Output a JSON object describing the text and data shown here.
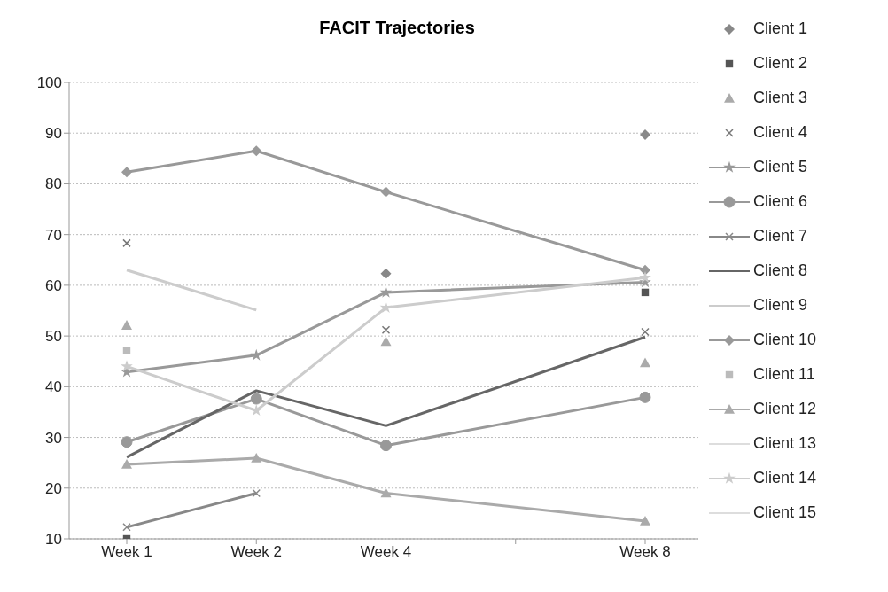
{
  "chart_data": {
    "type": "line",
    "title": "FACIT Trajectories",
    "categories": [
      "Week 1",
      "Week 2",
      "Week 4",
      null,
      "Week 8"
    ],
    "ylim": [
      10,
      100
    ],
    "yticks": [
      10,
      20,
      30,
      40,
      50,
      60,
      70,
      80,
      90,
      100
    ],
    "grid": "y",
    "legend": "right",
    "line_style": "solid",
    "series": [
      {
        "name": "Client 1",
        "type": "scatter",
        "color": "#888888",
        "marker": "diamond",
        "values": [
          null,
          null,
          62.3,
          null,
          89.7
        ]
      },
      {
        "name": "Client 2",
        "type": "scatter",
        "color": "#555555",
        "marker": "square",
        "values": [
          10,
          null,
          null,
          null,
          58.6
        ]
      },
      {
        "name": "Client 3",
        "type": "scatter",
        "color": "#aaaaaa",
        "marker": "triangle",
        "values": [
          52.1,
          null,
          48.9,
          null,
          44.7
        ]
      },
      {
        "name": "Client 4",
        "type": "scatter",
        "color": "#777777",
        "marker": "cross",
        "values": [
          68.3,
          null,
          51.2,
          null,
          50.8
        ]
      },
      {
        "name": "Client 5",
        "color": "#999999",
        "marker": "star",
        "values": [
          42.9,
          46.2,
          58.6,
          null,
          60.6
        ]
      },
      {
        "name": "Client 6",
        "color": "#999999",
        "marker": "circle",
        "values": [
          29.1,
          37.6,
          28.4,
          null,
          37.9
        ]
      },
      {
        "name": "Client 7",
        "color": "#888888",
        "marker": "cross",
        "values": [
          12.3,
          19.0,
          null,
          null,
          null
        ]
      },
      {
        "name": "Client 8",
        "color": "#666666",
        "marker": "none",
        "values": [
          26.1,
          39.2,
          32.3,
          null,
          49.8
        ]
      },
      {
        "name": "Client 9",
        "color": "#cccccc",
        "marker": "none",
        "values": [
          63,
          55.1,
          null,
          null,
          null
        ]
      },
      {
        "name": "Client 10",
        "color": "#999999",
        "marker": "diamond",
        "values": [
          82.3,
          86.5,
          78.4,
          null,
          63.0
        ]
      },
      {
        "name": "Client 11",
        "type": "scatter",
        "color": "#bbbbbb",
        "marker": "square",
        "values": [
          47.1,
          null,
          null,
          null,
          null
        ]
      },
      {
        "name": "Client 12",
        "color": "#aaaaaa",
        "marker": "triangle",
        "values": [
          24.7,
          25.9,
          19.0,
          null,
          13.5
        ]
      },
      {
        "name": "Client 13",
        "color": "#dddddd",
        "marker": "none",
        "values": [
          null,
          null,
          null,
          null,
          null
        ]
      },
      {
        "name": "Client 14",
        "color": "#cccccc",
        "marker": "star",
        "values": [
          44,
          35.3,
          55.6,
          null,
          61.5
        ]
      },
      {
        "name": "Client 15",
        "color": "#dddddd",
        "marker": "none",
        "values": [
          null,
          null,
          null,
          null,
          null
        ]
      }
    ]
  }
}
